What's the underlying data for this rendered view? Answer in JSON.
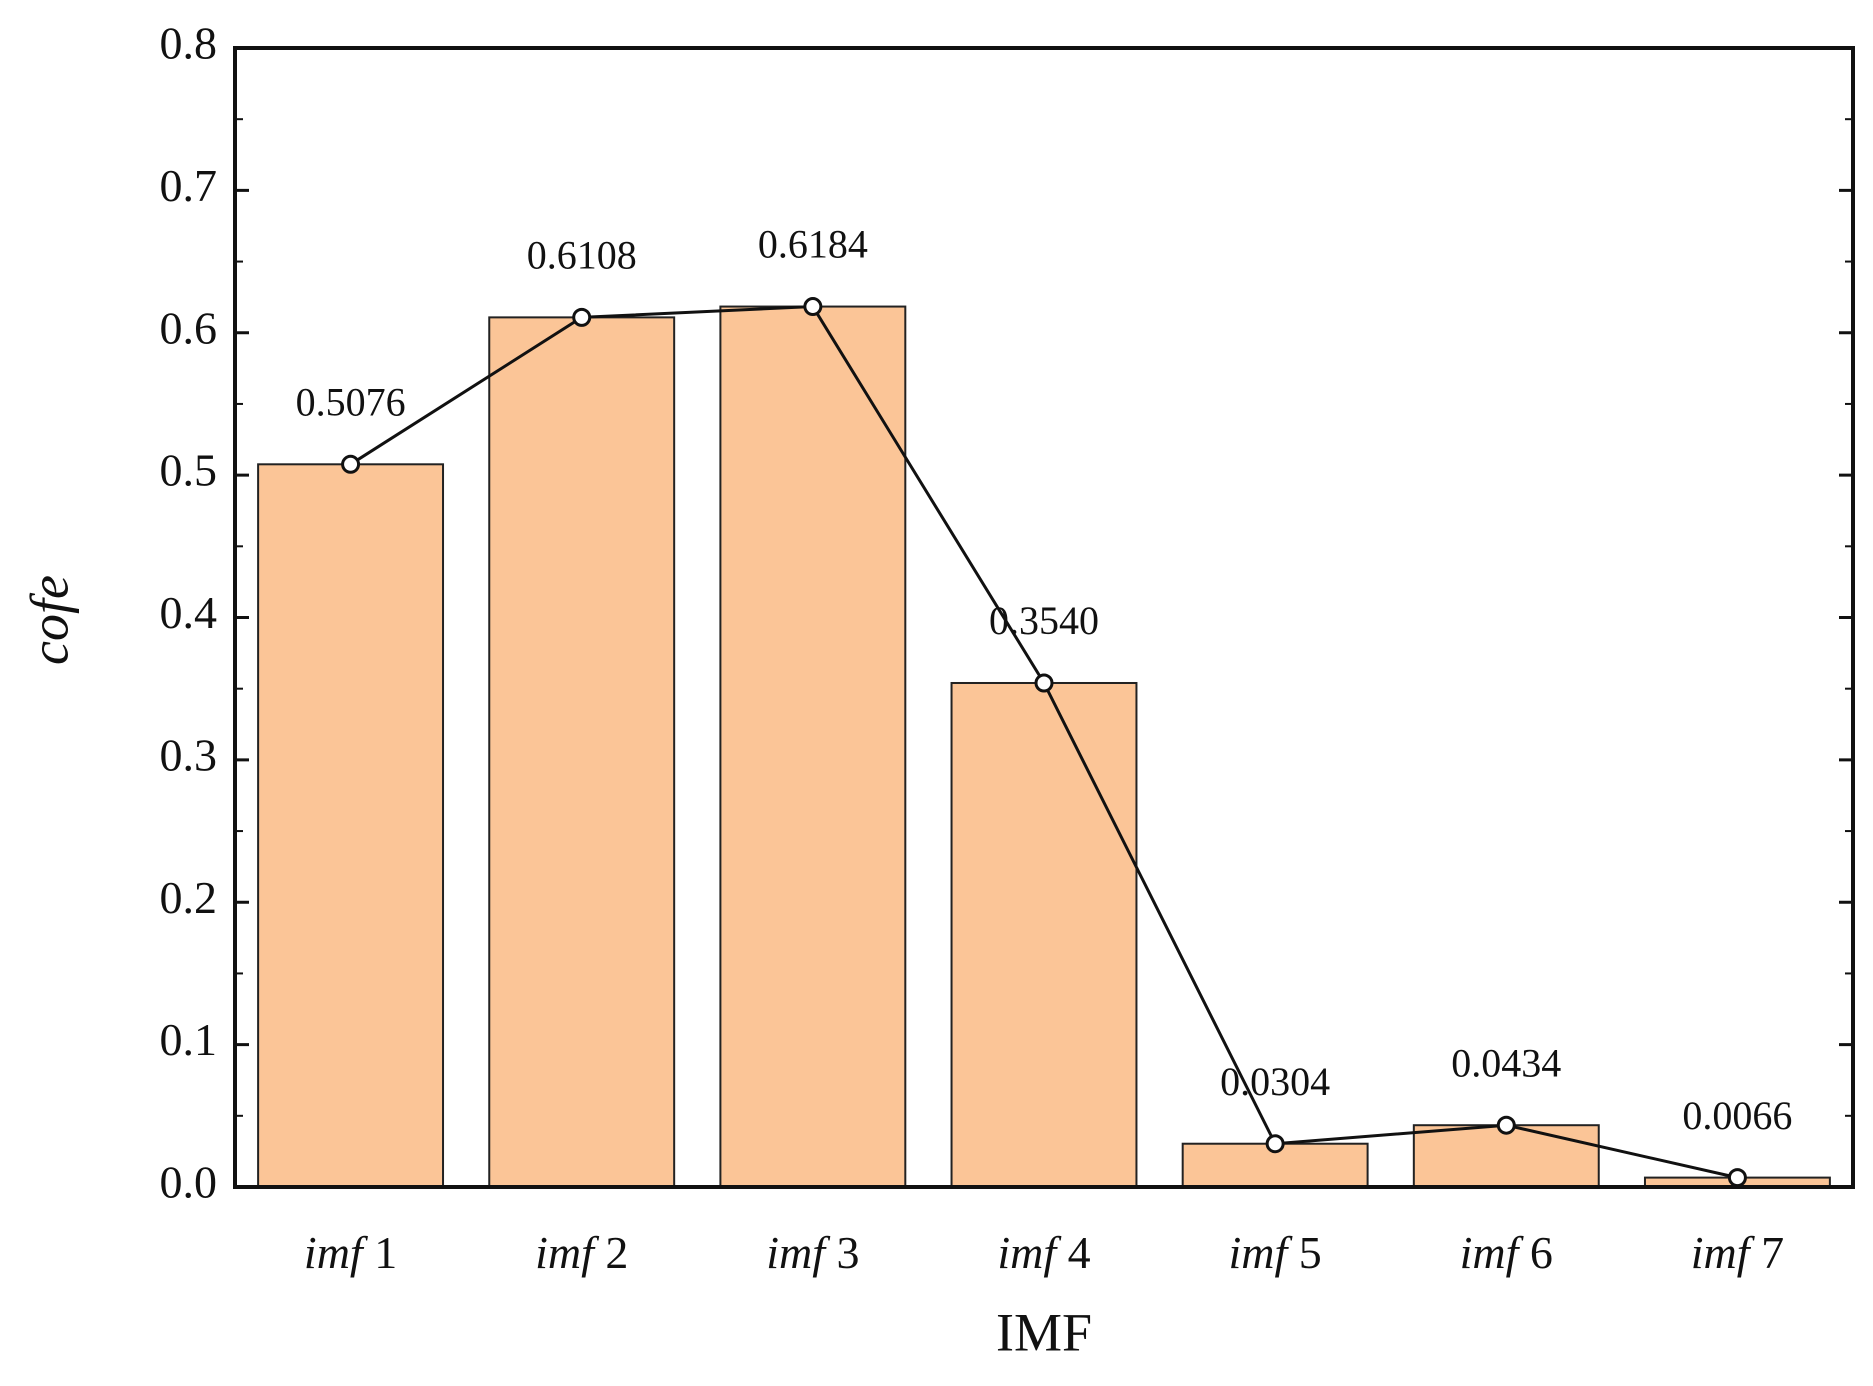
{
  "chart_data": {
    "type": "bar",
    "x_label": "IMF",
    "y_label": "cofe",
    "categories": [
      "imf 1",
      "imf 2",
      "imf 3",
      "imf 4",
      "imf 5",
      "imf 6",
      "imf 7"
    ],
    "series": [
      {
        "type": "bar",
        "color": "#fbc597",
        "values": [
          0.5076,
          0.6108,
          0.6184,
          0.354,
          0.0304,
          0.0434,
          0.0066
        ]
      },
      {
        "type": "line",
        "color": "#111111",
        "values": [
          0.5076,
          0.6108,
          0.6184,
          0.354,
          0.0304,
          0.0434,
          0.0066
        ],
        "value_labels": [
          "0.5076",
          "0.6108",
          "0.6184",
          "0.3540",
          "0.0304",
          "0.0434",
          "0.0066"
        ]
      }
    ],
    "ylim": [
      0,
      0.8
    ],
    "yticks": [
      {
        "value": 0,
        "label": "0.0"
      },
      0.1,
      0.2,
      0.3,
      0.4,
      0.5,
      0.6,
      0.7,
      0.8
    ]
  }
}
